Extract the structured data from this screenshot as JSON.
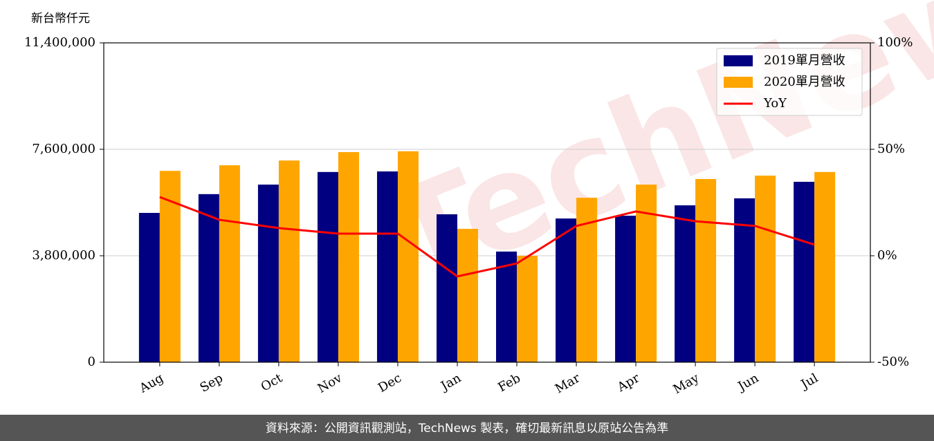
{
  "chart_data": {
    "type": "bar",
    "y_label": "新台幣仟元",
    "watermark": "TechNews",
    "footer": "資料來源：公開資訊觀測站，TechNews 製表，確切最新訊息以原站公告為準",
    "categories": [
      "Aug",
      "Sep",
      "Oct",
      "Nov",
      "Dec",
      "Jan",
      "Feb",
      "Mar",
      "Apr",
      "May",
      "Jun",
      "Jul"
    ],
    "series": [
      {
        "name": "2019單月營收",
        "color": "#000080",
        "values": [
          5330000,
          6000000,
          6340000,
          6790000,
          6810000,
          5280000,
          3950000,
          5130000,
          5230000,
          5600000,
          5850000,
          6440000
        ]
      },
      {
        "name": "2020單月營收",
        "color": "#ffa500",
        "values": [
          6830000,
          7030000,
          7200000,
          7500000,
          7530000,
          4760000,
          3800000,
          5870000,
          6340000,
          6540000,
          6660000,
          6790000
        ]
      },
      {
        "name": "YoY",
        "color": "#ff0000",
        "type": "line",
        "axis": "y2",
        "values": [
          27.6,
          16.9,
          13.0,
          10.4,
          10.4,
          -9.7,
          -3.6,
          14.0,
          20.8,
          16.2,
          14.0,
          5.2
        ]
      }
    ],
    "ylim": [
      0,
      11400000
    ],
    "yticks": [
      0,
      {
        "value": 3800000,
        "label": "3,800,000"
      },
      {
        "value": 7600000,
        "label": "7,600,000"
      },
      {
        "value": 11400000,
        "label": "11,400,000"
      }
    ],
    "y2lim": [
      -50,
      100
    ],
    "y2ticks": [
      {
        "value": -50,
        "label": "-50%"
      },
      {
        "value": 0,
        "label": "0%"
      },
      {
        "value": 50,
        "label": "50%"
      },
      {
        "value": 100,
        "label": "100%"
      }
    ],
    "grid": true,
    "legend": "upper right"
  }
}
